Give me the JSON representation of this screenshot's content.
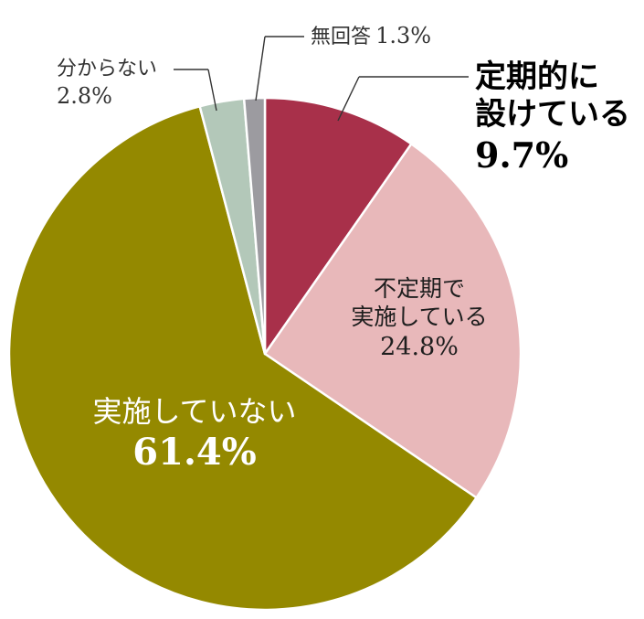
{
  "chart_data": {
    "type": "pie",
    "start": "top",
    "direction": "clockwise",
    "slices": [
      {
        "label_lines": [
          "定期的に",
          "設けている"
        ],
        "value": 9.7,
        "value_label": "9.7%",
        "color": "#a8304a"
      },
      {
        "label_lines": [
          "不定期で",
          "実施している"
        ],
        "value": 24.8,
        "value_label": "24.8%",
        "color": "#e8b8ba"
      },
      {
        "label_lines": [
          "実施していない"
        ],
        "value": 61.4,
        "value_label": "61.4%",
        "color": "#948900"
      },
      {
        "label_lines": [
          "分からない"
        ],
        "value": 2.8,
        "value_label": "2.8%",
        "color": "#b3c8b9"
      },
      {
        "label_lines": [
          "無回答"
        ],
        "value": 1.3,
        "value_label": "1.3%",
        "color": "#9c9ba0"
      }
    ]
  }
}
